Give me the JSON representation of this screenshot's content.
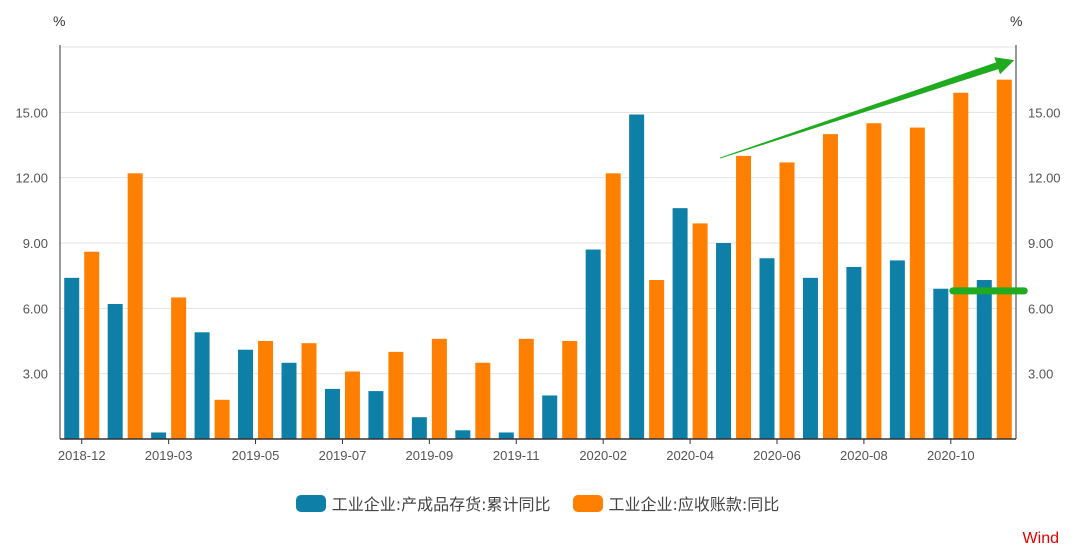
{
  "chart_data": {
    "type": "bar",
    "left_unit": "%",
    "right_unit": "%",
    "categories": [
      "2018-12",
      "2019-02",
      "2019-03",
      "2019-04",
      "2019-05",
      "2019-06",
      "2019-07",
      "2019-08",
      "2019-09",
      "2019-10",
      "2019-11",
      "2019-12",
      "2020-02",
      "2020-03",
      "2020-04",
      "2020-05",
      "2020-06",
      "2020-07",
      "2020-08",
      "2020-09",
      "2020-10",
      "2020-11"
    ],
    "x_tick_labels": [
      {
        "index": 0,
        "label": "2018-12"
      },
      {
        "index": 2,
        "label": "2019-03"
      },
      {
        "index": 4,
        "label": "2019-05"
      },
      {
        "index": 6,
        "label": "2019-07"
      },
      {
        "index": 8,
        "label": "2019-09"
      },
      {
        "index": 10,
        "label": "2019-11"
      },
      {
        "index": 12,
        "label": "2020-02"
      },
      {
        "index": 14,
        "label": "2020-04"
      },
      {
        "index": 16,
        "label": "2020-06"
      },
      {
        "index": 18,
        "label": "2020-08"
      },
      {
        "index": 20,
        "label": "2020-10"
      }
    ],
    "y_ticks": [
      "3.00",
      "6.00",
      "9.00",
      "12.00",
      "15.00"
    ],
    "ylim": [
      0,
      18
    ],
    "grid": true,
    "legend_position": "bottom",
    "series": [
      {
        "name": "工业企业:产成品存货:累计同比",
        "color": "#0e7fa6",
        "values": [
          7.4,
          6.2,
          0.3,
          4.9,
          4.1,
          3.5,
          2.3,
          2.2,
          1.0,
          0.4,
          0.3,
          2.0,
          8.7,
          14.9,
          10.6,
          9.0,
          8.3,
          7.4,
          7.9,
          8.2,
          6.9,
          7.3
        ]
      },
      {
        "name": "工业企业:应收账款:同比",
        "color": "#ff8000",
        "values": [
          8.6,
          12.2,
          6.5,
          1.8,
          4.5,
          4.4,
          3.1,
          4.0,
          4.6,
          3.5,
          4.6,
          4.5,
          12.2,
          7.3,
          9.9,
          13.0,
          12.7,
          14.0,
          14.5,
          14.3,
          15.9,
          16.5
        ]
      }
    ],
    "annotations": {
      "trend_arrow": {
        "from": [
          "2020-04",
          12.9
        ],
        "to": [
          "2020-11",
          17.4
        ],
        "color": "#1faa1f"
      },
      "level_line": {
        "from": "2020-10",
        "to": "2020-11",
        "y": 6.8,
        "color": "#1faa1f"
      }
    }
  },
  "source": "Wind"
}
